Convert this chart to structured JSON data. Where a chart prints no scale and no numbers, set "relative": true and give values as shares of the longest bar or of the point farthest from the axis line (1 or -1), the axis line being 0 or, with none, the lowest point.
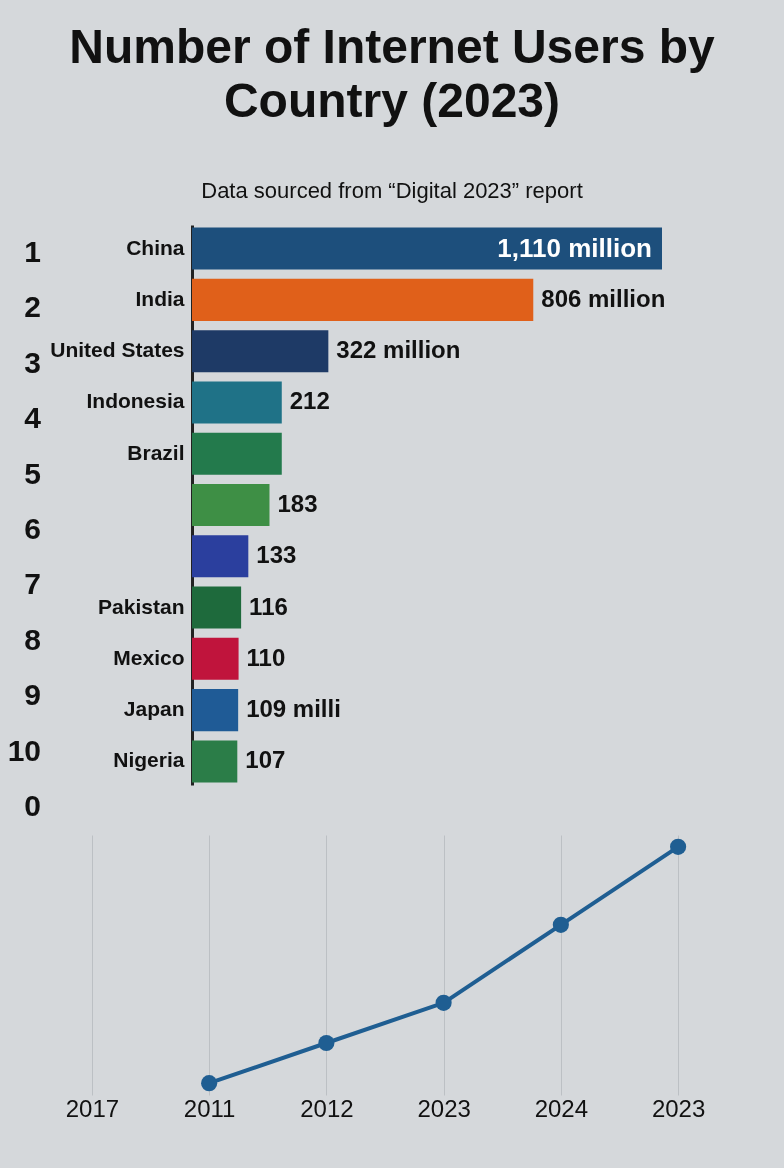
{
  "chart_data": [
    {
      "type": "bar",
      "orientation": "horizontal",
      "title": "Number of Internet Users by Country (2023)",
      "subtitle": "Data sourced from “Digital 2023” report",
      "categories": [
        "China",
        "India",
        "United States",
        "Indonesia",
        "Brazil",
        null,
        null,
        "Pakistan",
        "Mexico",
        "Japan",
        "Nigeria"
      ],
      "values": [
        1110,
        806,
        322,
        212,
        212,
        183,
        133,
        116,
        110,
        109,
        107
      ],
      "value_labels": [
        "1,110 million",
        "806 million",
        "322 million",
        "212",
        null,
        "183",
        "133",
        "116",
        "110",
        "109 milli",
        "107"
      ],
      "colors": [
        "#1d4f7c",
        "#e0601a",
        "#1e3a66",
        "#1f7287",
        "#237a4c",
        "#3e8f45",
        "#2b3f9e",
        "#1e6a3c",
        "#c0143c",
        "#1f5b96",
        "#2b7d48"
      ],
      "annotations": [
        "1",
        "2",
        "3",
        "4",
        "5",
        "6",
        "7",
        "8",
        "9",
        "10",
        "0"
      ]
    },
    {
      "type": "line",
      "relative": true,
      "categories": [
        "2017",
        "2011",
        "2012",
        "2023",
        "2024",
        "2023"
      ],
      "series": [
        {
          "color": "#1f5e92",
          "values": [
            null,
            0,
            0.17,
            0.34,
            0.67,
            1
          ]
        }
      ],
      "marker": "circle",
      "grid": "x"
    }
  ]
}
